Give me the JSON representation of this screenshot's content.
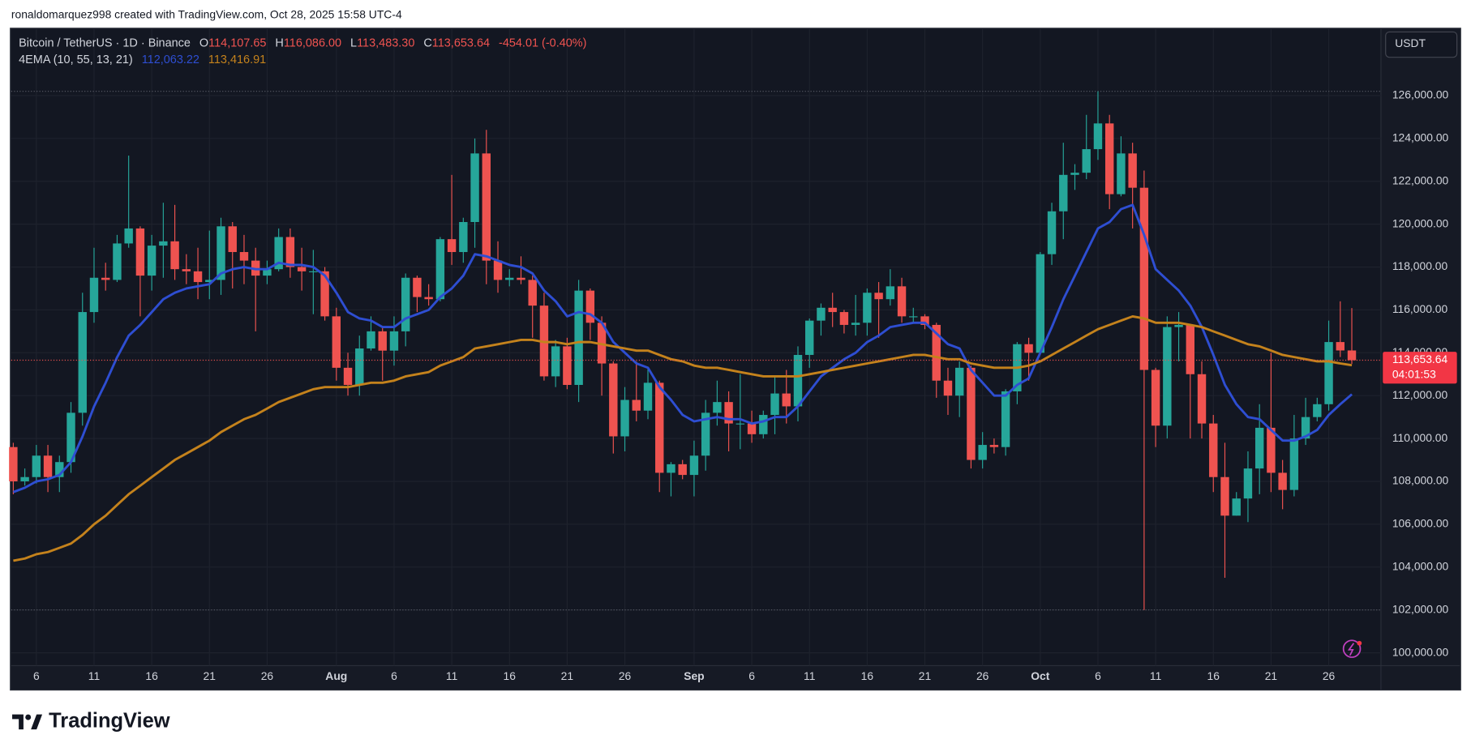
{
  "page": {
    "author_line": "ronaldomarquez998 created with TradingView.com, Oct 28, 2025 15:58 UTC-4",
    "logo": "TradingView",
    "currency_button": "USDT"
  },
  "chart_data": {
    "type": "candlestick",
    "header": {
      "symbol": "Bitcoin / TetherUS · 1D · Binance",
      "open_label": "O",
      "open": "114,107.65",
      "high_label": "H",
      "high": "116,086.00",
      "low_label": "L",
      "low": "113,483.30",
      "close_label": "C",
      "close": "113,653.64",
      "change": "-454.01 (-0.40%)"
    },
    "indicator": "4EMA (10, 55, 13, 21)",
    "last_price_label": "113,653.64",
    "countdown": "04:01:53",
    "colors": {
      "up": "#26a69a",
      "down": "#ef5350"
    },
    "categories": [
      null,
      null,
      "6",
      null,
      null,
      null,
      null,
      "11",
      null,
      null,
      null,
      null,
      "16",
      null,
      null,
      null,
      null,
      "21",
      null,
      null,
      null,
      null,
      "26",
      null,
      null,
      null,
      null,
      null,
      "Aug",
      null,
      null,
      null,
      null,
      "6",
      null,
      null,
      null,
      null,
      "11",
      null,
      null,
      null,
      null,
      "16",
      null,
      null,
      null,
      null,
      "21",
      null,
      null,
      null,
      null,
      "26",
      null,
      null,
      null,
      null,
      null,
      "Sep",
      null,
      null,
      null,
      null,
      "6",
      null,
      null,
      null,
      null,
      "11",
      null,
      null,
      null,
      null,
      "16",
      null,
      null,
      null,
      null,
      "21",
      null,
      null,
      null,
      null,
      "26",
      null,
      null,
      null,
      null,
      "Oct",
      null,
      null,
      null,
      null,
      "6",
      null,
      null,
      null,
      null,
      "11",
      null,
      null,
      null,
      null,
      "16",
      null,
      null,
      null,
      null,
      "21",
      null,
      null,
      null,
      null,
      "26",
      null,
      null
    ],
    "open": [
      109600,
      108000,
      108200,
      109200,
      108200,
      108900,
      111200,
      115900,
      117500,
      117400,
      119100,
      119800,
      117600,
      119000,
      119200,
      117900,
      117800,
      117300,
      117400,
      119900,
      118700,
      118300,
      117600,
      117900,
      119400,
      118000,
      117800,
      117800,
      115700,
      113300,
      112500,
      114200,
      115000,
      114100,
      115000,
      117500,
      116600,
      116500,
      119300,
      118700,
      120100,
      123300,
      118300,
      117400,
      117500,
      117400,
      116200,
      112900,
      114300,
      112500,
      116900,
      115400,
      113500,
      110100,
      111800,
      111300,
      112600,
      108400,
      108800,
      108300,
      109200,
      111200,
      111700,
      110700,
      110700,
      110200,
      111100,
      112100,
      111500,
      113900,
      115500,
      116100,
      115900,
      115300,
      115400,
      116800,
      116500,
      117100,
      115700,
      115700,
      115300,
      112700,
      112000,
      113300,
      109000,
      109700,
      109600,
      112200,
      114400,
      114000,
      118600,
      120600,
      122300,
      122400,
      123500,
      124700,
      121400,
      123300,
      121700,
      113200,
      110600,
      115200,
      115300,
      113000,
      110700,
      108200,
      106400,
      107200,
      108600,
      110500,
      108400,
      107600,
      110000,
      111000,
      111600,
      114500,
      114107.65
    ],
    "high": [
      109800,
      108600,
      109700,
      109700,
      109200,
      111700,
      116800,
      118900,
      118200,
      119500,
      123200,
      119900,
      119500,
      121000,
      120900,
      118600,
      118900,
      119700,
      120300,
      120100,
      119500,
      118900,
      118300,
      119800,
      119800,
      118900,
      118800,
      118000,
      116100,
      114000,
      114800,
      115700,
      115200,
      115700,
      117700,
      117600,
      117200,
      119400,
      122300,
      120300,
      124000,
      124400,
      119200,
      117900,
      118500,
      117600,
      116800,
      114600,
      114700,
      117400,
      117000,
      115700,
      113600,
      112400,
      113600,
      113300,
      112700,
      108900,
      109000,
      109900,
      111800,
      112700,
      112200,
      113000,
      111300,
      111300,
      112900,
      113200,
      114300,
      115600,
      116300,
      116800,
      116000,
      116700,
      117000,
      117300,
      117900,
      117500,
      116100,
      115800,
      115400,
      113300,
      113600,
      113400,
      110300,
      110000,
      112300,
      114500,
      114700,
      118700,
      121000,
      123800,
      122800,
      125100,
      126200,
      125100,
      124100,
      123800,
      122500,
      113300,
      115700,
      115900,
      115300,
      113600,
      111100,
      109800,
      107500,
      109400,
      111600,
      114000,
      109000,
      111100,
      111900,
      111900,
      115500,
      116400,
      116086
    ],
    "low": [
      107400,
      107800,
      107900,
      107500,
      107500,
      108400,
      110600,
      115400,
      116900,
      117300,
      118900,
      115700,
      116900,
      117500,
      117400,
      117200,
      116500,
      116500,
      116700,
      117000,
      117200,
      115000,
      117200,
      117800,
      117500,
      116900,
      115800,
      115500,
      112700,
      112000,
      112000,
      114100,
      112700,
      113400,
      114300,
      115900,
      116200,
      116400,
      118100,
      118200,
      118900,
      117200,
      116800,
      117100,
      117200,
      114700,
      112700,
      112400,
      112300,
      111700,
      114600,
      112000,
      109300,
      109400,
      110800,
      110900,
      107500,
      107300,
      108100,
      107300,
      108500,
      110600,
      109400,
      109500,
      109800,
      110000,
      110200,
      110700,
      110800,
      113300,
      114800,
      115200,
      114900,
      114800,
      114800,
      114700,
      116200,
      115400,
      115400,
      115100,
      111900,
      111100,
      111000,
      108600,
      108600,
      109300,
      109200,
      111600,
      112700,
      113900,
      118100,
      119300,
      121600,
      122100,
      123000,
      120700,
      121300,
      119800,
      102000,
      109600,
      110000,
      113600,
      110000,
      110000,
      107500,
      103500,
      106400,
      106100,
      107400,
      107500,
      106700,
      107300,
      109700,
      110800,
      111300,
      113800,
      113483.3
    ],
    "close": [
      108000,
      108200,
      109200,
      108200,
      108900,
      111200,
      115900,
      117500,
      117400,
      119100,
      119800,
      117600,
      119000,
      119200,
      117900,
      117800,
      117300,
      117400,
      119900,
      118700,
      118300,
      117600,
      117900,
      119400,
      118000,
      117800,
      117800,
      115700,
      113300,
      112500,
      114200,
      115000,
      114100,
      115000,
      117500,
      116600,
      116500,
      119300,
      118700,
      120100,
      123300,
      118300,
      117400,
      117500,
      117400,
      116200,
      112900,
      114300,
      112500,
      116900,
      115400,
      113500,
      110100,
      111800,
      111300,
      112600,
      108400,
      108800,
      108300,
      109200,
      111200,
      111700,
      110700,
      110700,
      110200,
      111100,
      112100,
      111500,
      113900,
      115500,
      116100,
      115900,
      115300,
      115400,
      116800,
      116500,
      117100,
      115700,
      115700,
      115300,
      112700,
      112000,
      113300,
      109000,
      109700,
      109600,
      112200,
      114400,
      114000,
      118600,
      120600,
      122300,
      122400,
      123500,
      124700,
      121400,
      123300,
      121700,
      113200,
      110600,
      115200,
      115300,
      113000,
      110700,
      108200,
      106400,
      107200,
      108600,
      110500,
      108400,
      107600,
      110000,
      111000,
      111600,
      114500,
      114107.65,
      113653.64
    ],
    "series": [
      {
        "color": "#2e4ed2",
        "last_label": "112,063.22",
        "values": [
          107500,
          107700,
          108000,
          108100,
          108300,
          108900,
          110100,
          111500,
          112600,
          113800,
          114800,
          115300,
          115900,
          116500,
          116800,
          117000,
          117100,
          117200,
          117700,
          117900,
          118000,
          117900,
          117900,
          118200,
          118100,
          118100,
          118000,
          117600,
          116800,
          115900,
          115600,
          115500,
          115200,
          115200,
          115600,
          115800,
          116000,
          116600,
          117000,
          117600,
          118600,
          118500,
          118300,
          118100,
          118000,
          117700,
          116900,
          116400,
          115700,
          115900,
          115800,
          115400,
          114500,
          114000,
          113500,
          113300,
          112400,
          111800,
          111100,
          110800,
          110900,
          111000,
          110900,
          110900,
          110700,
          110800,
          111000,
          111000,
          111500,
          112200,
          112900,
          113300,
          113700,
          114000,
          114500,
          114800,
          115200,
          115300,
          115400,
          115400,
          114900,
          114400,
          114200,
          113200,
          112600,
          112000,
          112000,
          112500,
          112800,
          114000,
          115200,
          116500,
          117600,
          118700,
          119800,
          120100,
          120700,
          120900,
          119500,
          117900,
          117400,
          116900,
          116200,
          115200,
          113900,
          112500,
          111600,
          111000,
          110900,
          110400,
          109900,
          109900,
          110100,
          110400,
          111100,
          111600,
          112063.22
        ]
      },
      {
        "color": "#c4821c",
        "last_label": "113,416.91",
        "values": [
          104300,
          104400,
          104600,
          104700,
          104900,
          105100,
          105500,
          106000,
          106400,
          106900,
          107400,
          107800,
          108200,
          108600,
          109000,
          109300,
          109600,
          109900,
          110300,
          110600,
          110900,
          111100,
          111400,
          111700,
          111900,
          112100,
          112300,
          112400,
          112400,
          112400,
          112500,
          112600,
          112600,
          112700,
          112900,
          113000,
          113100,
          113400,
          113600,
          113800,
          114200,
          114300,
          114400,
          114500,
          114600,
          114600,
          114500,
          114500,
          114400,
          114500,
          114500,
          114400,
          114300,
          114200,
          114100,
          114100,
          113900,
          113700,
          113600,
          113400,
          113300,
          113300,
          113200,
          113100,
          113000,
          112900,
          112900,
          112900,
          112900,
          113000,
          113100,
          113200,
          113300,
          113400,
          113500,
          113600,
          113700,
          113800,
          113900,
          113900,
          113800,
          113700,
          113700,
          113500,
          113400,
          113300,
          113300,
          113300,
          113400,
          113600,
          113900,
          114200,
          114500,
          114800,
          115100,
          115300,
          115500,
          115700,
          115600,
          115400,
          115400,
          115400,
          115300,
          115200,
          115000,
          114800,
          114600,
          114400,
          114300,
          114100,
          113900,
          113800,
          113700,
          113600,
          113600,
          113500,
          113416.91
        ]
      }
    ],
    "ylim": [
      99400,
      129100
    ],
    "yticks": [
      {
        "value": 100000,
        "label": "100,000.00"
      },
      {
        "value": 102000,
        "label": "102,000.00"
      },
      {
        "value": 104000,
        "label": "104,000.00"
      },
      {
        "value": 106000,
        "label": "106,000.00"
      },
      {
        "value": 108000,
        "label": "108,000.00"
      },
      {
        "value": 110000,
        "label": "110,000.00"
      },
      {
        "value": 112000,
        "label": "112,000.00"
      },
      {
        "value": 114000,
        "label": "114,000.00"
      },
      {
        "value": 116000,
        "label": "116,000.00"
      },
      {
        "value": 118000,
        "label": "118,000.00"
      },
      {
        "value": 120000,
        "label": "120,000.00"
      },
      {
        "value": 122000,
        "label": "122,000.00"
      },
      {
        "value": 124000,
        "label": "124,000.00"
      },
      {
        "value": 126000,
        "label": "126,000.00"
      }
    ],
    "grid": true
  }
}
